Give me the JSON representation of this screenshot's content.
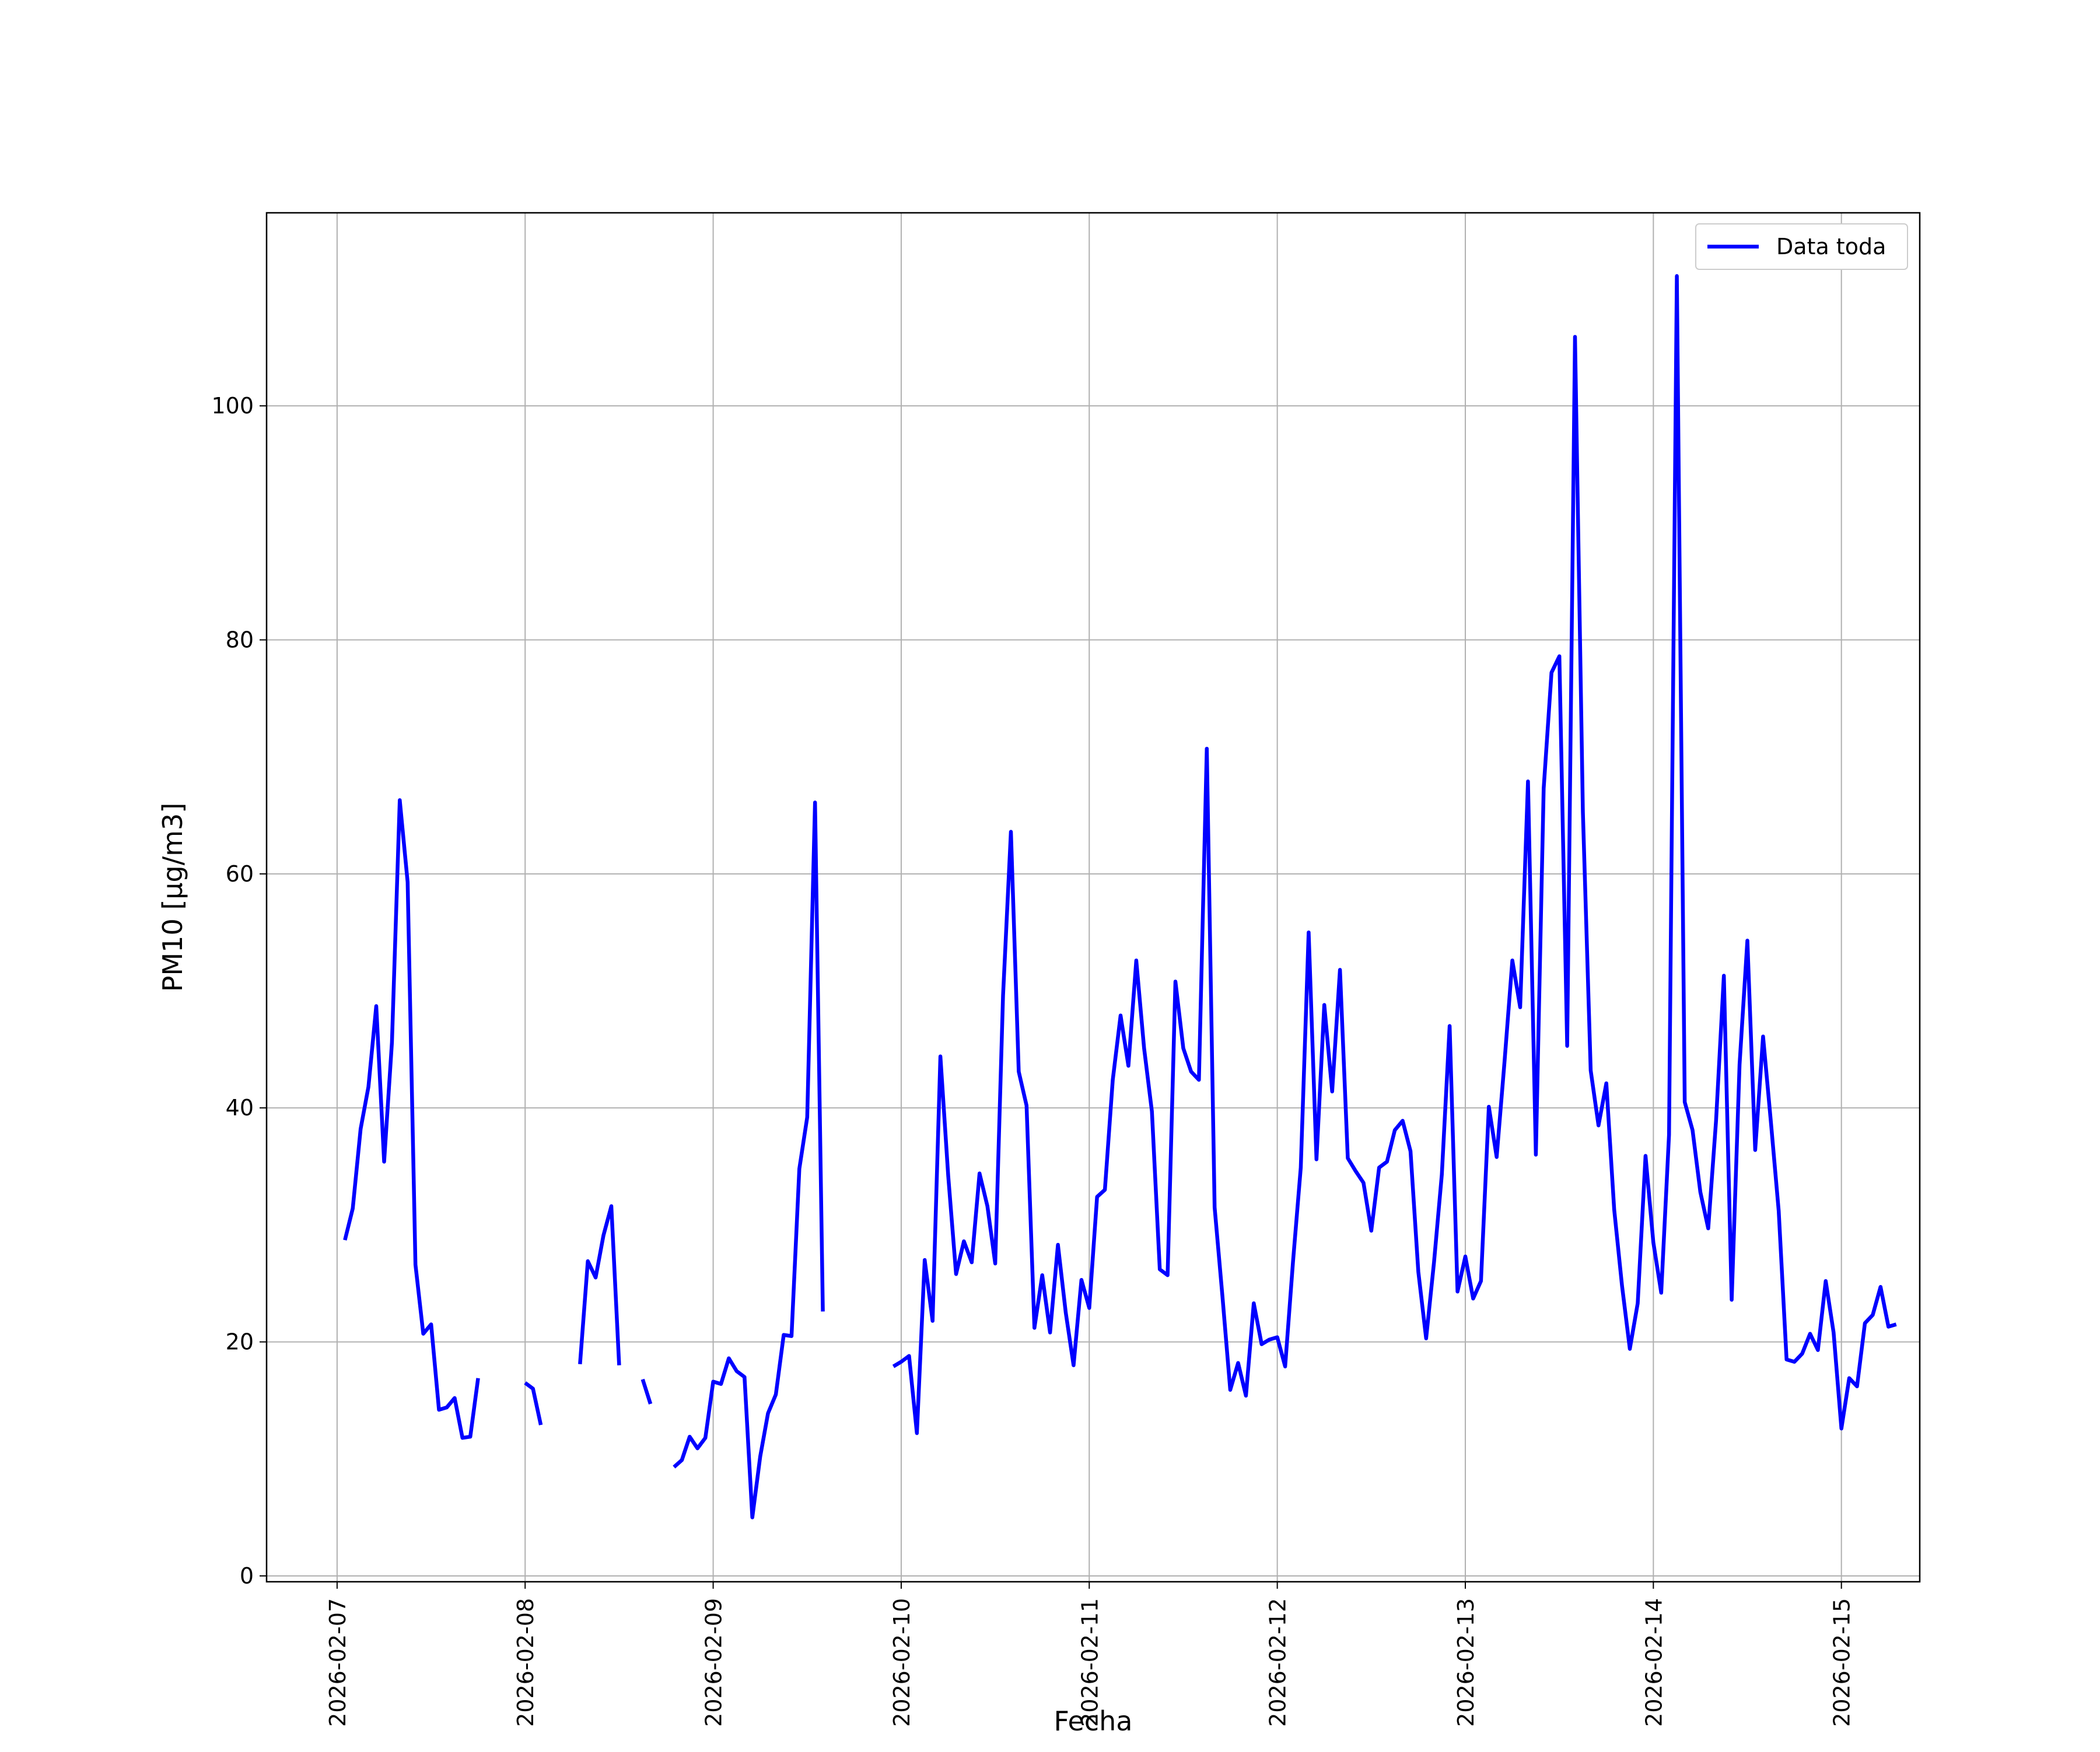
{
  "chart_data": {
    "type": "line",
    "title": "",
    "xlabel": "Fecha",
    "ylabel": "PM10 [μg/m3]",
    "x_ticks": [
      "2026-02-07",
      "2026-02-08",
      "2026-02-09",
      "2026-02-10",
      "2026-02-11",
      "2026-02-12",
      "2026-02-13",
      "2026-02-14",
      "2026-02-15"
    ],
    "y_ticks": [
      0,
      20,
      40,
      60,
      80,
      100
    ],
    "ylim": [
      -0.5,
      116.5
    ],
    "xlim": [
      "2026-02-06 15:00",
      "2026-02-15 10:00"
    ],
    "grid": true,
    "legend_position": "top-right",
    "series": [
      {
        "name": "Data toda",
        "color": "#0000ff",
        "start": "2026-02-07 01:00",
        "interval_hours": 1,
        "values": [
          28.7,
          31.4,
          38.2,
          41.8,
          48.7,
          35.4,
          45.6,
          66.3,
          59.3,
          26.6,
          20.7,
          21.5,
          14.2,
          14.4,
          15.2,
          11.8,
          11.9,
          16.9,
          null,
          null,
          null,
          null,
          null,
          16.5,
          16.0,
          12.9,
          null,
          null,
          null,
          null,
          18.1,
          26.9,
          25.5,
          29.1,
          31.6,
          18.0,
          null,
          null,
          16.8,
          14.7,
          null,
          null,
          9.3,
          9.9,
          11.9,
          10.9,
          11.8,
          16.6,
          16.4,
          18.6,
          17.5,
          17.0,
          5.0,
          10.2,
          13.9,
          15.5,
          20.6,
          20.5,
          34.8,
          39.2,
          66.1,
          22.6,
          null,
          null,
          null,
          null,
          null,
          null,
          null,
          null,
          17.9,
          18.3,
          18.8,
          12.2,
          27.0,
          21.8,
          44.4,
          34.2,
          25.8,
          28.6,
          26.8,
          34.4,
          31.6,
          26.7,
          49.6,
          63.6,
          43.1,
          40.2,
          21.2,
          25.7,
          20.8,
          28.3,
          22.5,
          18.0,
          25.3,
          22.9,
          32.4,
          33.0,
          42.4,
          47.9,
          43.6,
          52.6,
          45.1,
          39.7,
          26.2,
          25.7,
          50.8,
          45.1,
          43.1,
          42.4,
          70.7,
          31.5,
          23.9,
          15.9,
          18.2,
          15.4,
          23.3,
          19.8,
          20.2,
          20.4,
          17.9,
          26.8,
          34.9,
          55.0,
          35.6,
          48.8,
          41.4,
          51.8,
          35.7,
          34.6,
          33.6,
          29.5,
          34.9,
          35.4,
          38.1,
          38.9,
          36.3,
          26.0,
          20.3,
          26.8,
          34.3,
          47.0,
          24.3,
          27.3,
          23.7,
          25.2,
          40.1,
          35.8,
          43.9,
          52.6,
          48.6,
          67.9,
          36.0,
          67.3,
          77.2,
          78.6,
          45.3,
          105.9,
          65.3,
          43.2,
          38.5,
          42.1,
          31.3,
          24.8,
          19.4,
          23.3,
          35.9,
          28.5,
          24.2,
          37.7,
          111.1,
          40.5,
          38.1,
          32.8,
          29.7,
          38.9,
          51.3,
          23.6,
          43.7,
          54.3,
          36.4,
          46.1,
          38.8,
          31.2,
          18.5,
          18.3,
          19.0,
          20.7,
          19.3,
          25.2,
          20.8,
          12.6,
          16.9,
          16.2,
          21.6,
          22.3,
          24.7,
          21.3,
          21.5
        ]
      }
    ]
  }
}
